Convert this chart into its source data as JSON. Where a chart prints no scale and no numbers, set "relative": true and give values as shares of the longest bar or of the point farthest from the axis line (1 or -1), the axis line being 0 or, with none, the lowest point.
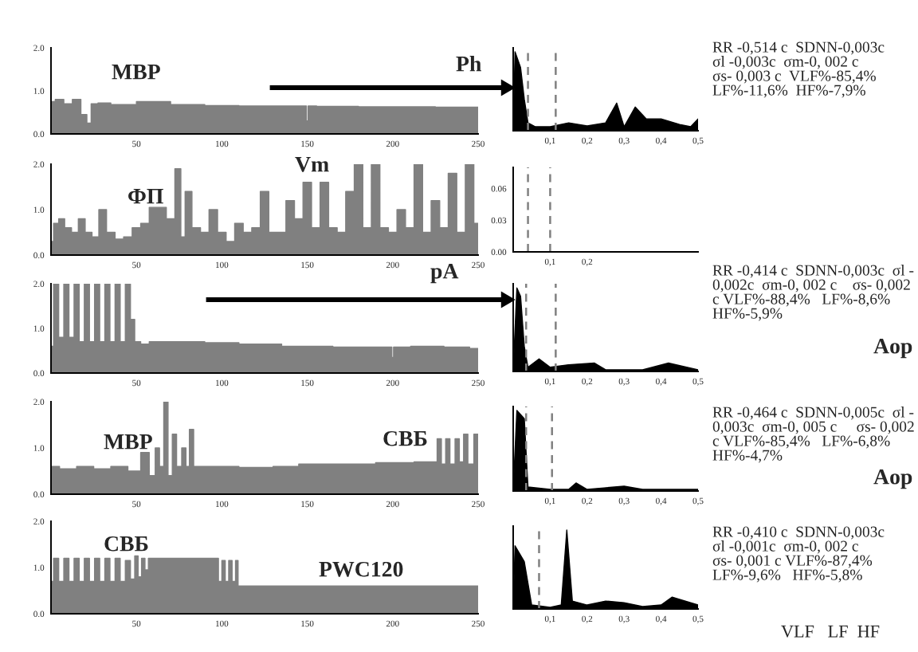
{
  "chart_data": [
    {
      "type": "area",
      "x": [
        0,
        5,
        10,
        15,
        20,
        22,
        25,
        30,
        40,
        60,
        80,
        100,
        120,
        140,
        149,
        150,
        151,
        160,
        200,
        250
      ],
      "values": [
        0.75,
        0.8,
        0.7,
        0.8,
        0.45,
        0.25,
        0.7,
        0.72,
        0.68,
        0.75,
        0.68,
        0.66,
        0.65,
        0.65,
        0.65,
        0.3,
        0.65,
        0.64,
        0.63,
        0.62
      ],
      "color": "#808080",
      "xlim": [
        0,
        250
      ],
      "ylim": [
        0,
        2
      ],
      "xticks": [
        50,
        100,
        150,
        200,
        250
      ],
      "yticks": [
        {
          "value": 0,
          "label": "0.0"
        },
        {
          "value": 1,
          "label": "1.0"
        },
        {
          "value": 2,
          "label": "2.0"
        }
      ],
      "annotations": [
        "МВР"
      ]
    },
    {
      "type": "area",
      "relative": true,
      "x": [
        0,
        0.005,
        0.02,
        0.03,
        0.04,
        0.06,
        0.1,
        0.15,
        0.2,
        0.25,
        0.28,
        0.3,
        0.33,
        0.36,
        0.4,
        0.45,
        0.48,
        0.5
      ],
      "values": [
        0,
        1,
        0.8,
        0.4,
        0.1,
        0.05,
        0.05,
        0.1,
        0.06,
        0.1,
        0.35,
        0.05,
        0.3,
        0.15,
        0.15,
        0.08,
        0.05,
        0.15
      ],
      "color": "#000000",
      "xlim": [
        0,
        0.5
      ],
      "xticks": [
        {
          "value": 0.1,
          "label": "0,1"
        },
        {
          "value": 0.2,
          "label": "0,2"
        },
        {
          "value": 0.3,
          "label": "0,3"
        },
        {
          "value": 0.4,
          "label": "0,4"
        },
        {
          "value": 0.5,
          "label": "0,5"
        }
      ],
      "ref_lines": [
        {
          "axis": "x",
          "value": 0.04,
          "line_style": "dashed",
          "color": "#808080"
        },
        {
          "axis": "x",
          "value": 0.115,
          "line_style": "dashed",
          "color": "#808080"
        }
      ],
      "annotations": [
        "Ph",
        "RR -0,514 c  SDNN-0,003c",
        "σl -0,003c  σm-0, 002 c",
        "σs- 0,003 c  VLF%-85,4%",
        "LF%-11,6%  HF%-7,9%"
      ]
    },
    {
      "type": "area",
      "x": [
        0,
        3,
        6,
        10,
        14,
        18,
        22,
        26,
        30,
        35,
        40,
        45,
        50,
        55,
        60,
        65,
        70,
        75,
        77,
        80,
        85,
        90,
        95,
        100,
        105,
        110,
        115,
        120,
        125,
        130,
        135,
        140,
        145,
        150,
        155,
        160,
        165,
        170,
        175,
        180,
        185,
        190,
        195,
        200,
        205,
        210,
        215,
        220,
        225,
        230,
        235,
        240,
        245,
        250
      ],
      "values": [
        0.3,
        0.7,
        0.8,
        0.6,
        0.5,
        0.8,
        0.5,
        0.4,
        1.0,
        0.5,
        0.35,
        0.4,
        0.6,
        0.7,
        1.05,
        1.05,
        0.8,
        1.9,
        0.4,
        1.4,
        0.6,
        0.5,
        1.0,
        0.5,
        0.3,
        0.7,
        0.5,
        0.6,
        1.4,
        0.5,
        0.5,
        1.2,
        0.8,
        1.6,
        0.6,
        1.6,
        0.6,
        0.5,
        1.4,
        2.0,
        0.6,
        2.0,
        0.6,
        0.5,
        1.0,
        0.6,
        2.0,
        0.5,
        1.2,
        0.6,
        1.8,
        0.5,
        2.0,
        0.7
      ],
      "color": "#808080",
      "xlim": [
        0,
        250
      ],
      "ylim": [
        0,
        2
      ],
      "xticks": [
        50,
        100,
        150,
        200,
        250
      ],
      "yticks": [
        {
          "value": 0,
          "label": "0.0"
        },
        {
          "value": 1,
          "label": "1.0"
        },
        {
          "value": 2,
          "label": "2.0"
        }
      ],
      "annotations": [
        "Vm",
        "ФП"
      ]
    },
    {
      "type": "area",
      "xlim": [
        0,
        0.5
      ],
      "ylim": [
        0,
        0.08
      ],
      "yticks": [
        {
          "value": 0,
          "label": "0.00"
        },
        {
          "value": 0.03,
          "label": "0.03"
        },
        {
          "value": 0.06,
          "label": "0.06"
        }
      ],
      "xticks": [
        {
          "value": 0.1,
          "label": "0,1"
        },
        {
          "value": 0.2,
          "label": "0,2"
        }
      ],
      "ref_lines": [
        {
          "axis": "x",
          "value": 0.04,
          "line_style": "dashed",
          "color": "#808080"
        },
        {
          "axis": "x",
          "value": 0.1,
          "line_style": "dashed",
          "color": "#808080"
        }
      ]
    },
    {
      "type": "area",
      "x": [
        0,
        3,
        6,
        9,
        12,
        15,
        18,
        21,
        24,
        27,
        30,
        33,
        36,
        39,
        42,
        45,
        48,
        50,
        55,
        60,
        80,
        100,
        120,
        150,
        180,
        199,
        200,
        201,
        220,
        240,
        250
      ],
      "values": [
        0.6,
        2.0,
        0.8,
        2.0,
        0.8,
        2.0,
        0.7,
        2.0,
        0.7,
        2.0,
        0.7,
        2.0,
        0.7,
        2.0,
        0.7,
        2.0,
        1.2,
        0.7,
        0.65,
        0.7,
        0.7,
        0.68,
        0.65,
        0.6,
        0.58,
        0.58,
        0.35,
        0.58,
        0.6,
        0.58,
        0.55
      ],
      "color": "#808080",
      "xlim": [
        0,
        250
      ],
      "ylim": [
        0,
        2
      ],
      "xticks": [
        50,
        100,
        150,
        200,
        250
      ],
      "yticks": [
        {
          "value": 0,
          "label": "0.0"
        },
        {
          "value": 1,
          "label": "1.0"
        },
        {
          "value": 2,
          "label": "2.0"
        }
      ],
      "annotations": [
        "pA"
      ]
    },
    {
      "type": "area",
      "relative": true,
      "x": [
        0,
        0.01,
        0.02,
        0.03,
        0.04,
        0.07,
        0.1,
        0.15,
        0.22,
        0.25,
        0.35,
        0.42,
        0.5
      ],
      "values": [
        0,
        1,
        0.9,
        0.3,
        0.05,
        0.15,
        0.05,
        0.08,
        0.1,
        0.02,
        0.02,
        0.1,
        0.02
      ],
      "color": "#000000",
      "xlim": [
        0,
        0.5
      ],
      "xticks": [
        {
          "value": 0.1,
          "label": "0,1"
        },
        {
          "value": 0.2,
          "label": "0,2"
        },
        {
          "value": 0.3,
          "label": "0,3"
        },
        {
          "value": 0.4,
          "label": "0,4"
        },
        {
          "value": 0.5,
          "label": "0,5"
        }
      ],
      "ref_lines": [
        {
          "axis": "x",
          "value": 0.035,
          "line_style": "dashed",
          "color": "#808080"
        },
        {
          "axis": "x",
          "value": 0.115,
          "line_style": "dashed",
          "color": "#808080"
        }
      ],
      "annotations": [
        "RR -0,414 c  SDNN-0,003c  σl -",
        "0,002c  σm-0, 002 c    σs- 0,002",
        "c VLF%-88,4%   LF%-8,6%",
        "HF%-5,9%",
        "Aop"
      ]
    },
    {
      "type": "area",
      "x": [
        0,
        10,
        20,
        30,
        40,
        50,
        55,
        60,
        62,
        65,
        67,
        70,
        72,
        75,
        78,
        80,
        82,
        85,
        90,
        100,
        120,
        140,
        150,
        180,
        200,
        225,
        227,
        230,
        232,
        235,
        238,
        240,
        243,
        245,
        250
      ],
      "values": [
        0.6,
        0.55,
        0.6,
        0.55,
        0.6,
        0.5,
        0.9,
        0.4,
        1.0,
        0.6,
        2.0,
        0.4,
        1.3,
        0.6,
        1.0,
        0.6,
        1.4,
        0.6,
        0.6,
        0.6,
        0.58,
        0.6,
        0.65,
        0.65,
        0.68,
        0.7,
        1.2,
        0.65,
        1.2,
        0.65,
        1.2,
        0.7,
        1.3,
        0.65,
        1.3
      ],
      "color": "#808080",
      "xlim": [
        0,
        250
      ],
      "ylim": [
        0,
        2
      ],
      "xticks": [
        50,
        100,
        150,
        200,
        250
      ],
      "yticks": [
        {
          "value": 0,
          "label": "0.0"
        },
        {
          "value": 1,
          "label": "1.0"
        },
        {
          "value": 2,
          "label": "2.0"
        }
      ],
      "annotations": [
        "МВР",
        "СВБ"
      ]
    },
    {
      "type": "area",
      "relative": true,
      "x": [
        0,
        0.01,
        0.03,
        0.04,
        0.1,
        0.15,
        0.17,
        0.2,
        0.3,
        0.35,
        0.5
      ],
      "values": [
        0,
        1,
        0.9,
        0.05,
        0.02,
        0.02,
        0.1,
        0.02,
        0.06,
        0.02,
        0.02
      ],
      "color": "#000000",
      "xlim": [
        0,
        0.5
      ],
      "xticks": [
        {
          "value": 0.1,
          "label": "0,1"
        },
        {
          "value": 0.2,
          "label": "0,2"
        },
        {
          "value": 0.3,
          "label": "0,3"
        },
        {
          "value": 0.4,
          "label": "0,4"
        },
        {
          "value": 0.5,
          "label": "0,5"
        }
      ],
      "ref_lines": [
        {
          "axis": "x",
          "value": 0.035,
          "line_style": "dashed",
          "color": "#808080"
        },
        {
          "axis": "x",
          "value": 0.105,
          "line_style": "dashed",
          "color": "#808080"
        }
      ],
      "annotations": [
        "RR -0,464 c  SDNN-0,005c  σl -",
        "0,003c  σm-0, 005 c     σs- 0,002",
        "c VLF%-85,4%   LF%-6,8%",
        "HF%-4,7%",
        "Aop"
      ]
    },
    {
      "type": "area",
      "x": [
        0,
        3,
        6,
        9,
        12,
        15,
        18,
        21,
        24,
        27,
        30,
        33,
        36,
        39,
        42,
        45,
        48,
        50,
        52,
        54,
        56,
        58,
        97,
        99,
        101,
        103,
        105,
        107,
        109,
        110,
        112,
        150,
        200,
        250
      ],
      "values": [
        0.7,
        1.2,
        0.7,
        1.2,
        0.7,
        1.2,
        0.7,
        1.2,
        0.7,
        1.2,
        0.7,
        1.2,
        0.7,
        1.2,
        0.7,
        1.15,
        0.75,
        1.25,
        0.8,
        1.2,
        0.95,
        1.2,
        1.2,
        0.7,
        1.15,
        0.7,
        1.15,
        0.7,
        1.15,
        0.6,
        0.6,
        0.6,
        0.6,
        0.6
      ],
      "color": "#808080",
      "xlim": [
        0,
        250
      ],
      "ylim": [
        0,
        2
      ],
      "xticks": [
        50,
        100,
        150,
        200,
        250
      ],
      "yticks": [
        {
          "value": 0,
          "label": "0.0"
        },
        {
          "value": 1,
          "label": "1.0"
        },
        {
          "value": 2,
          "label": "2.0"
        }
      ],
      "annotations": [
        "СВБ",
        "PWC120"
      ]
    },
    {
      "type": "area",
      "relative": true,
      "x": [
        0,
        0.005,
        0.03,
        0.05,
        0.1,
        0.13,
        0.145,
        0.16,
        0.2,
        0.25,
        0.3,
        0.35,
        0.4,
        0.43,
        0.5
      ],
      "values": [
        0,
        0.8,
        0.6,
        0.05,
        0.02,
        0.05,
        1,
        0.1,
        0.05,
        0.1,
        0.08,
        0.03,
        0.05,
        0.15,
        0.05
      ],
      "color": "#000000",
      "xlim": [
        0,
        0.5
      ],
      "xticks": [
        {
          "value": 0.1,
          "label": "0,1"
        },
        {
          "value": 0.2,
          "label": "0,2"
        },
        {
          "value": 0.3,
          "label": "0,3"
        },
        {
          "value": 0.4,
          "label": "0,4"
        },
        {
          "value": 0.5,
          "label": "0,5"
        }
      ],
      "ref_lines": [
        {
          "axis": "x",
          "value": 0.07,
          "line_style": "dashed",
          "color": "#808080"
        }
      ],
      "annotations": [
        "RR -0,410 c  SDNN-0,003c",
        "σl -0,001c  σm-0, 002 c",
        "σs- 0,001 c VLF%-87,4%",
        "LF%-9,6%   HF%-5,8%",
        "VLF   LF  HF"
      ]
    }
  ]
}
